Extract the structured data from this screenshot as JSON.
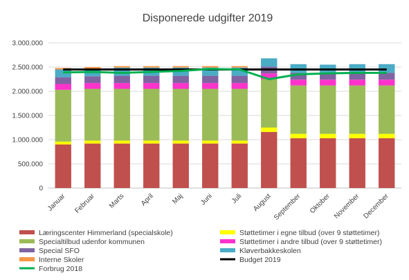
{
  "chart_data": {
    "type": "bar",
    "stacked": true,
    "title": "Disponerede udgifter 2019",
    "categories": [
      "Januar",
      "Februar",
      "Marts",
      "April",
      "Maj",
      "Juni",
      "Juli",
      "August",
      "September",
      "Oktober",
      "November",
      "December"
    ],
    "ylim": [
      0,
      3000000
    ],
    "yticks": [
      0,
      500000,
      1000000,
      1500000,
      2000000,
      2500000,
      3000000
    ],
    "ytick_labels": [
      "0",
      "500.000",
      "1.000.000",
      "1.500.000",
      "2.000.000",
      "2.500.000",
      "3.000.000"
    ],
    "grid": true,
    "legend_position": "bottom",
    "series": [
      {
        "name": "Læringscenter Himmerland (specialskole)",
        "color": "#c0504d",
        "values": [
          900000,
          920000,
          920000,
          920000,
          920000,
          920000,
          920000,
          1160000,
          1030000,
          1030000,
          1030000,
          1030000
        ]
      },
      {
        "name": "Støttetimer i egne tilbud (over 9 støttetimer)",
        "color": "#ffff00",
        "values": [
          60000,
          60000,
          60000,
          60000,
          60000,
          60000,
          60000,
          90000,
          90000,
          90000,
          90000,
          90000
        ]
      },
      {
        "name": "Specialtilbud udenfor kommunen",
        "color": "#9bbb59",
        "values": [
          1070000,
          1070000,
          1070000,
          1070000,
          1070000,
          1070000,
          1070000,
          1000000,
          1000000,
          1000000,
          1000000,
          1000000
        ]
      },
      {
        "name": "Støttetimer i andre tilbud (over 9 støttetimer)",
        "color": "#ff33cc",
        "values": [
          120000,
          120000,
          120000,
          120000,
          120000,
          120000,
          120000,
          120000,
          120000,
          120000,
          120000,
          120000
        ]
      },
      {
        "name": "Special SFO",
        "color": "#8064a2",
        "values": [
          140000,
          140000,
          150000,
          150000,
          150000,
          150000,
          150000,
          140000,
          140000,
          140000,
          140000,
          140000
        ]
      },
      {
        "name": "Kløverbakkeskolen",
        "color": "#4bacc6",
        "values": [
          160000,
          160000,
          170000,
          170000,
          170000,
          170000,
          170000,
          170000,
          180000,
          170000,
          180000,
          180000
        ]
      },
      {
        "name": "Interne Skoler",
        "color": "#f79646",
        "values": [
          30000,
          30000,
          30000,
          30000,
          30000,
          30000,
          30000,
          0,
          0,
          0,
          0,
          0
        ]
      }
    ],
    "lines": [
      {
        "name": "Budget 2019",
        "color": "#000000",
        "values": [
          2450000,
          2450000,
          2450000,
          2450000,
          2450000,
          2450000,
          2450000,
          2450000,
          2450000,
          2450000,
          2450000,
          2450000
        ]
      },
      {
        "name": "Forbrug 2018",
        "color": "#00b050",
        "values": [
          2390000,
          2400000,
          2380000,
          2400000,
          2420000,
          2460000,
          2450000,
          2250000,
          2350000,
          2370000,
          2380000,
          2380000
        ]
      }
    ],
    "legend_layout": [
      {
        "ref": "series",
        "index": 0,
        "col": 0,
        "row": 0
      },
      {
        "ref": "series",
        "index": 1,
        "col": 1,
        "row": 0
      },
      {
        "ref": "series",
        "index": 2,
        "col": 0,
        "row": 1
      },
      {
        "ref": "series",
        "index": 3,
        "col": 1,
        "row": 1
      },
      {
        "ref": "series",
        "index": 4,
        "col": 0,
        "row": 2
      },
      {
        "ref": "series",
        "index": 5,
        "col": 1,
        "row": 2
      },
      {
        "ref": "series",
        "index": 6,
        "col": 0,
        "row": 3
      },
      {
        "ref": "lines",
        "index": 0,
        "col": 1,
        "row": 3
      },
      {
        "ref": "lines",
        "index": 1,
        "col": 0,
        "row": 4
      }
    ]
  }
}
